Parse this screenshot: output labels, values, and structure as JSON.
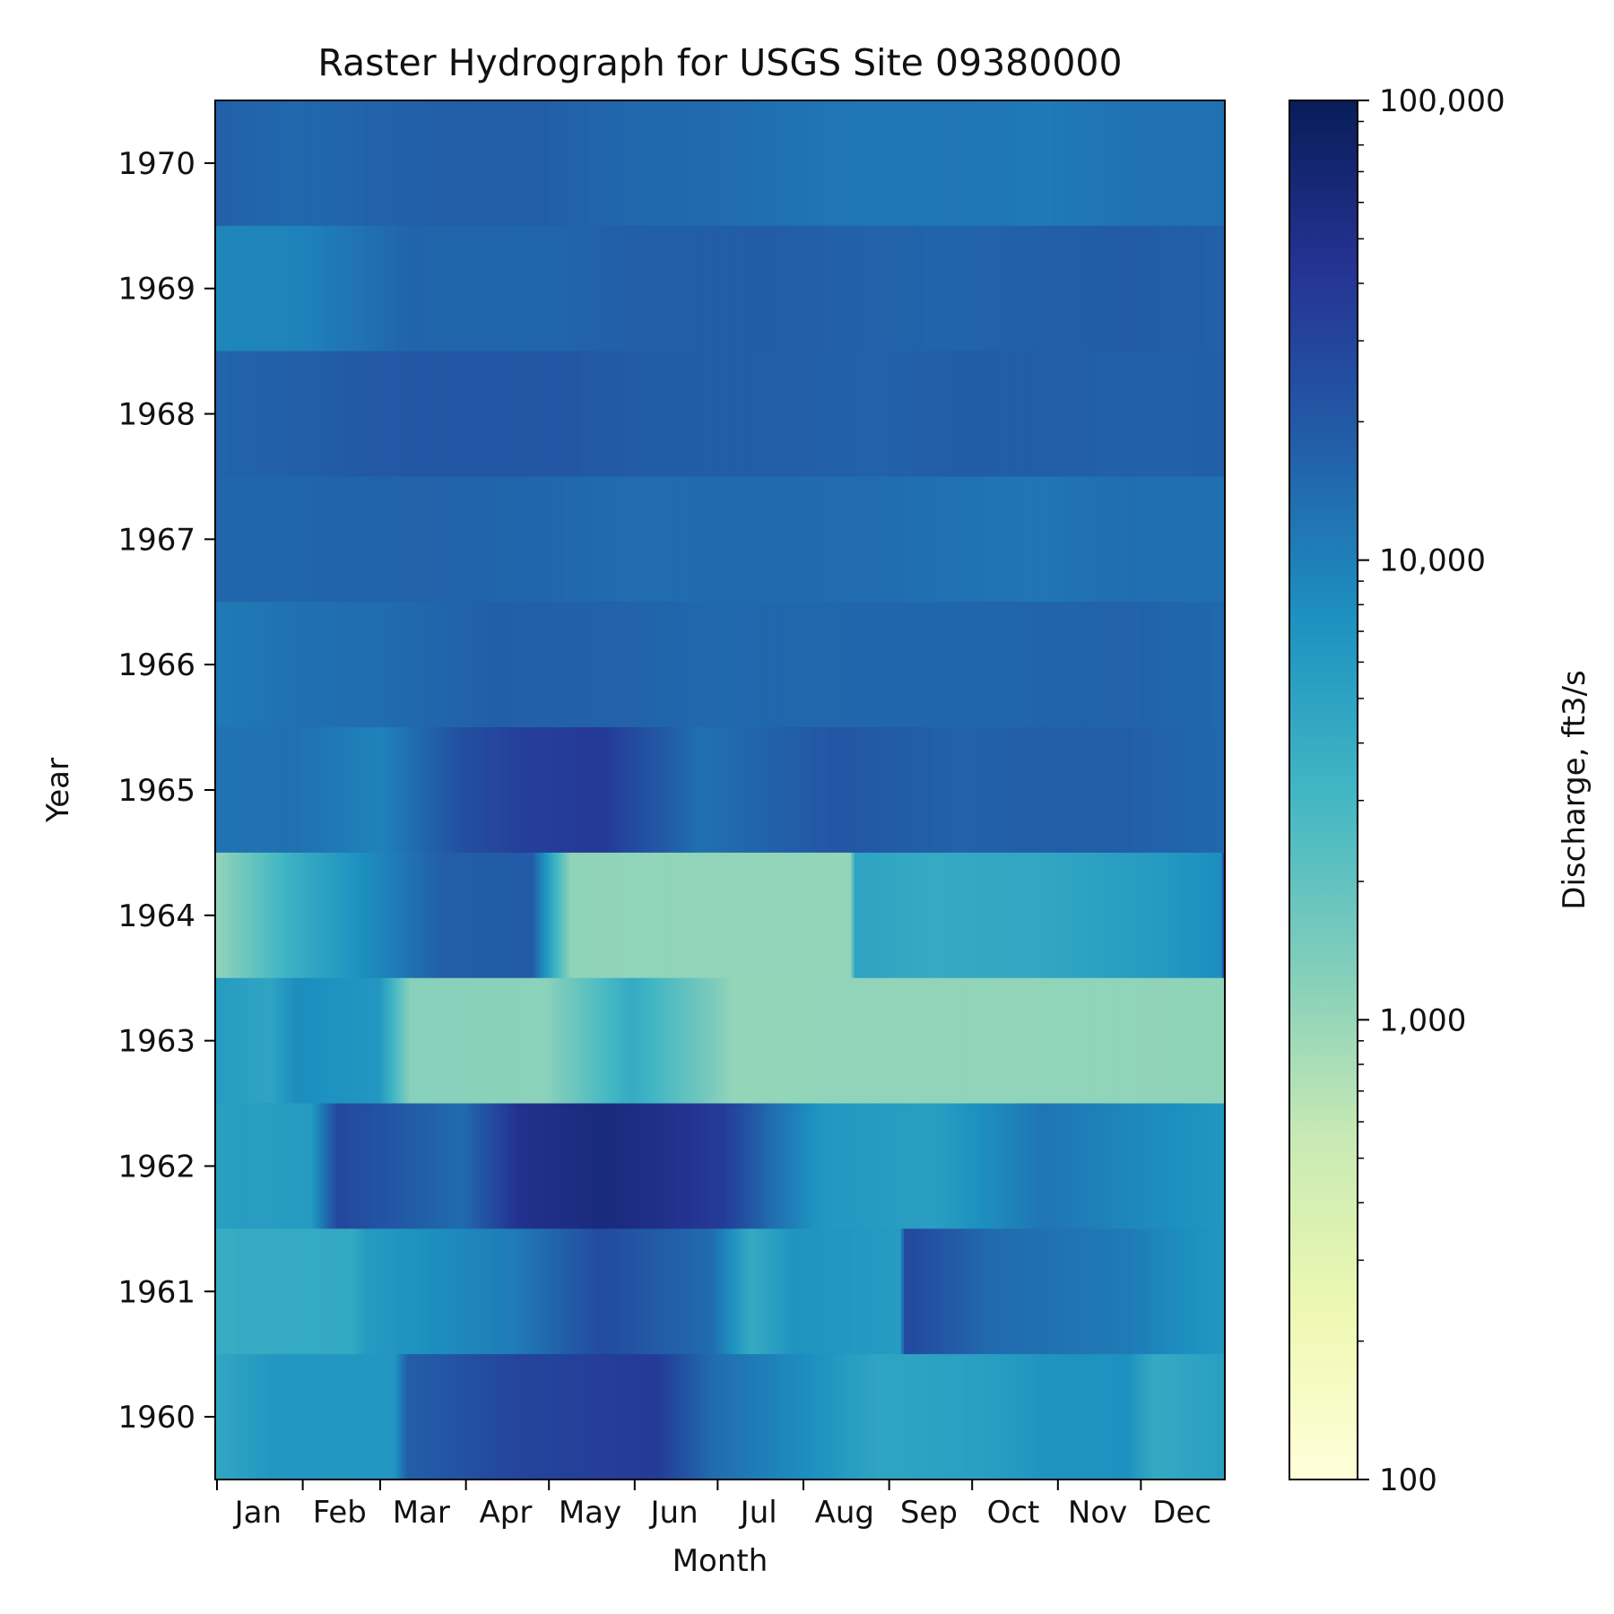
{
  "chart_data": {
    "type": "heatmap",
    "title": "Raster Hydrograph for USGS Site 09380000",
    "xlabel": "Month",
    "ylabel": "Year",
    "colorbar_label": "Discharge, ft3/s",
    "colorbar_scale": "log",
    "colorbar_range": [
      100,
      100000
    ],
    "colorbar_ticks": [
      "100",
      "1,000",
      "10,000",
      "100,000"
    ],
    "colormap": "YlGnBu",
    "colormap_stops": [
      "#ffffd9",
      "#edf8b1",
      "#c7e9b4",
      "#7fcdbb",
      "#41b6c4",
      "#1d91c0",
      "#225ea8",
      "#253494",
      "#081d58"
    ],
    "x_ticks": [
      "Jan",
      "Feb",
      "Mar",
      "Apr",
      "May",
      "Jun",
      "Jul",
      "Aug",
      "Sep",
      "Oct",
      "Nov",
      "Dec"
    ],
    "years": [
      "1970",
      "1969",
      "1968",
      "1967",
      "1966",
      "1965",
      "1964",
      "1963",
      "1962",
      "1961",
      "1960"
    ],
    "rows": [
      {
        "year": "1970",
        "segments": [
          [
            1,
            17000
          ],
          [
            30,
            15000
          ],
          [
            60,
            16500
          ],
          [
            90,
            18000
          ],
          [
            120,
            17500
          ],
          [
            150,
            15000
          ],
          [
            180,
            14500
          ],
          [
            210,
            12500
          ],
          [
            240,
            11500
          ],
          [
            270,
            12000
          ],
          [
            300,
            11000
          ],
          [
            330,
            12500
          ],
          [
            365,
            13000
          ]
        ]
      },
      {
        "year": "1969",
        "segments": [
          [
            1,
            9000
          ],
          [
            31,
            9500
          ],
          [
            71,
            16000
          ],
          [
            120,
            15500
          ],
          [
            150,
            17500
          ],
          [
            200,
            18500
          ],
          [
            240,
            16500
          ],
          [
            270,
            16000
          ],
          [
            300,
            17500
          ],
          [
            330,
            19000
          ],
          [
            365,
            17000
          ]
        ]
      },
      {
        "year": "1968",
        "segments": [
          [
            1,
            16000
          ],
          [
            30,
            17500
          ],
          [
            57,
            20000
          ],
          [
            90,
            21000
          ],
          [
            130,
            20500
          ],
          [
            160,
            18500
          ],
          [
            200,
            18000
          ],
          [
            240,
            16500
          ],
          [
            270,
            18500
          ],
          [
            300,
            18000
          ],
          [
            330,
            17000
          ],
          [
            365,
            17500
          ]
        ]
      },
      {
        "year": "1967",
        "segments": [
          [
            1,
            15500
          ],
          [
            40,
            16000
          ],
          [
            80,
            16500
          ],
          [
            120,
            15500
          ],
          [
            150,
            14000
          ],
          [
            200,
            14500
          ],
          [
            240,
            14000
          ],
          [
            270,
            12500
          ],
          [
            300,
            12000
          ],
          [
            330,
            13500
          ],
          [
            365,
            13000
          ]
        ]
      },
      {
        "year": "1966",
        "segments": [
          [
            1,
            11000
          ],
          [
            31,
            13000
          ],
          [
            60,
            14000
          ],
          [
            100,
            17500
          ],
          [
            150,
            16500
          ],
          [
            180,
            15000
          ],
          [
            240,
            15500
          ],
          [
            270,
            15500
          ],
          [
            300,
            16000
          ],
          [
            330,
            16500
          ],
          [
            365,
            15000
          ]
        ]
      },
      {
        "year": "1965",
        "segments": [
          [
            1,
            12500
          ],
          [
            30,
            13000
          ],
          [
            60,
            9500
          ],
          [
            90,
            24000
          ],
          [
            110,
            33000
          ],
          [
            140,
            38000
          ],
          [
            176,
            13000
          ],
          [
            225,
            21000
          ],
          [
            270,
            16500
          ],
          [
            300,
            18000
          ],
          [
            330,
            17500
          ],
          [
            365,
            15000
          ]
        ]
      },
      {
        "year": "1964",
        "segments": [
          [
            1,
            1050
          ],
          [
            29,
            3800
          ],
          [
            83,
            18000
          ],
          [
            115,
            19000
          ],
          [
            129,
            1100
          ],
          [
            230,
            1050
          ],
          [
            232,
            5000
          ],
          [
            260,
            4200
          ],
          [
            300,
            4600
          ],
          [
            340,
            6000
          ],
          [
            364,
            8000
          ],
          [
            365,
            22000
          ]
        ]
      },
      {
        "year": "1963",
        "segments": [
          [
            1,
            6000
          ],
          [
            20,
            4800
          ],
          [
            30,
            8000
          ],
          [
            60,
            6500
          ],
          [
            71,
            1200
          ],
          [
            120,
            1150
          ],
          [
            151,
            4200
          ],
          [
            188,
            1050
          ],
          [
            365,
            1100
          ]
        ]
      },
      {
        "year": "1962",
        "segments": [
          [
            1,
            5500
          ],
          [
            35,
            6000
          ],
          [
            45,
            28000
          ],
          [
            90,
            14000
          ],
          [
            110,
            46000
          ],
          [
            140,
            60000
          ],
          [
            170,
            45000
          ],
          [
            185,
            35000
          ],
          [
            200,
            15000
          ],
          [
            220,
            6500
          ],
          [
            260,
            5500
          ],
          [
            300,
            12000
          ],
          [
            365,
            6500
          ]
        ]
      },
      {
        "year": "1961",
        "segments": [
          [
            1,
            4000
          ],
          [
            50,
            4300
          ],
          [
            55,
            6000
          ],
          [
            110,
            11000
          ],
          [
            140,
            26000
          ],
          [
            180,
            14000
          ],
          [
            194,
            4200
          ],
          [
            210,
            7000
          ],
          [
            248,
            6000
          ],
          [
            250,
            28000
          ],
          [
            280,
            14500
          ],
          [
            330,
            11000
          ],
          [
            346,
            8500
          ],
          [
            365,
            6500
          ]
        ]
      },
      {
        "year": "1960",
        "segments": [
          [
            1,
            4500
          ],
          [
            20,
            6500
          ],
          [
            65,
            6500
          ],
          [
            70,
            17500
          ],
          [
            110,
            30000
          ],
          [
            140,
            34000
          ],
          [
            160,
            37000
          ],
          [
            180,
            14000
          ],
          [
            210,
            8500
          ],
          [
            240,
            4800
          ],
          [
            280,
            5500
          ],
          [
            300,
            7000
          ],
          [
            330,
            7500
          ],
          [
            340,
            4200
          ],
          [
            365,
            5500
          ]
        ]
      }
    ]
  }
}
